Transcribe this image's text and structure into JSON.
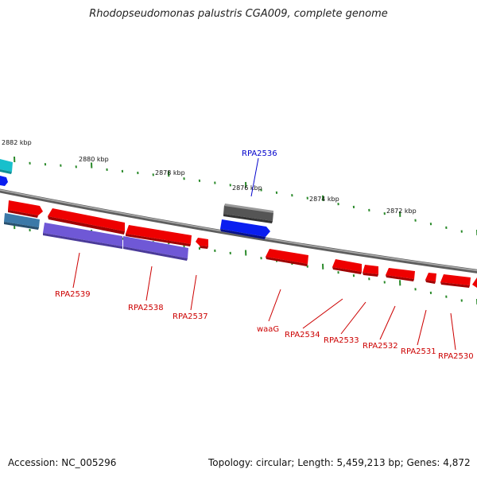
{
  "title": "Rhodopseudomonas palustris CGA009, complete genome",
  "footer": {
    "accession": "Accession: NC_005296",
    "summary": "Topology: circular; Length: 5,459,213 bp; Genes: 4,872"
  },
  "colors": {
    "backbone": "#777777",
    "tick_major": "#2a8a2a",
    "tick_minor": "#2a8a2a",
    "gene_red": "#ee0000",
    "gene_blue": "#0a1ef0",
    "gene_purple": "#6f58d6",
    "gene_steel": "#3c79a8",
    "gene_teal": "#18c0cc",
    "gene_gray": "#555555",
    "label_red": "#cc0000",
    "label_blue": "#0000cc"
  },
  "kbp_labels": [
    "2882 kbp",
    "2880 kbp",
    "2878 kbp",
    "2876 kbp",
    "2874 kbp",
    "2872 kbp"
  ],
  "gene_labels": [
    {
      "name": "RPA2539",
      "color": "red"
    },
    {
      "name": "RPA2538",
      "color": "red"
    },
    {
      "name": "RPA2537",
      "color": "red"
    },
    {
      "name": "RPA2536",
      "color": "blue"
    },
    {
      "name": "waaG",
      "color": "red"
    },
    {
      "name": "RPA2534",
      "color": "red"
    },
    {
      "name": "RPA2533",
      "color": "red"
    },
    {
      "name": "RPA2532",
      "color": "red"
    },
    {
      "name": "RPA2531",
      "color": "red"
    },
    {
      "name": "RPA2530",
      "color": "red"
    }
  ]
}
